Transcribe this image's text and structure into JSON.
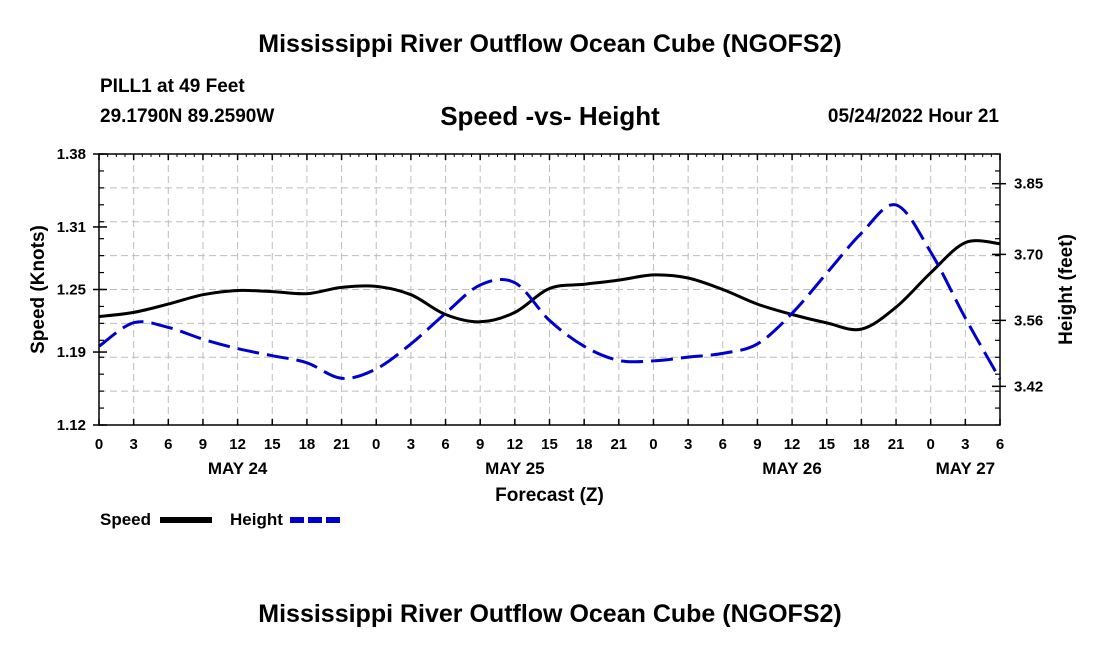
{
  "header": {
    "title": "Mississippi River Outflow Ocean Cube (NGOFS2)",
    "station": "PILL1 at 49 Feet",
    "coords": "29.1790N  89.2590W",
    "chart_title": "Speed -vs- Height",
    "timestamp": "05/24/2022 Hour 21"
  },
  "footer": {
    "title": "Mississippi River Outflow Ocean Cube (NGOFS2)"
  },
  "colors": {
    "speed": "#000000",
    "height": "#0000cc",
    "grid": "#bdbdbd"
  },
  "chart_data": {
    "type": "line",
    "title": "Speed -vs- Height",
    "xlabel": "Forecast (Z)",
    "ylabel": "Speed (Knots)",
    "y2label": "Height (feet)",
    "grid": true,
    "legend": "bottom-left",
    "xlim": [
      0,
      78
    ],
    "ylim": [
      1.12,
      1.38
    ],
    "y2lim": [
      3.338,
      3.913
    ],
    "x_ticks": [
      0,
      3,
      6,
      9,
      12,
      15,
      18,
      21,
      24,
      27,
      30,
      33,
      36,
      39,
      42,
      45,
      48,
      51,
      54,
      57,
      60,
      63,
      66,
      69,
      72,
      75,
      78
    ],
    "x_tick_labels": [
      "0",
      "3",
      "6",
      "9",
      "12",
      "15",
      "18",
      "21",
      "0",
      "3",
      "6",
      "9",
      "12",
      "15",
      "18",
      "21",
      "0",
      "3",
      "6",
      "9",
      "12",
      "15",
      "18",
      "21",
      "0",
      "3",
      "6"
    ],
    "day_labels": [
      {
        "x": 12,
        "label": "MAY 24"
      },
      {
        "x": 36,
        "label": "MAY 25"
      },
      {
        "x": 60,
        "label": "MAY 26"
      },
      {
        "x": 75,
        "label": "MAY 27"
      }
    ],
    "y_ticks": [
      1.12,
      1.19,
      1.25,
      1.31,
      1.38
    ],
    "y_tick_labels": [
      "1.12",
      "1.19",
      "1.25",
      "1.31",
      "1.38"
    ],
    "y2_ticks": [
      3.42,
      3.56,
      3.7,
      3.85
    ],
    "y2_tick_labels": [
      "3.42",
      "3.56",
      "3.70",
      "3.85"
    ],
    "series": [
      {
        "name": "Speed",
        "axis": "left",
        "style": "solid",
        "x": [
          0,
          3,
          6,
          9,
          12,
          15,
          18,
          21,
          24,
          27,
          30,
          33,
          36,
          39,
          42,
          45,
          48,
          51,
          54,
          57,
          60,
          63,
          66,
          69,
          72,
          75,
          78
        ],
        "values": [
          1.224,
          1.228,
          1.236,
          1.245,
          1.249,
          1.248,
          1.246,
          1.252,
          1.253,
          1.245,
          1.226,
          1.219,
          1.228,
          1.251,
          1.255,
          1.259,
          1.264,
          1.261,
          1.25,
          1.236,
          1.226,
          1.218,
          1.212,
          1.233,
          1.266,
          1.295,
          1.294
        ]
      },
      {
        "name": "Height",
        "axis": "right",
        "style": "dashed",
        "x": [
          0,
          3,
          6,
          9,
          12,
          15,
          18,
          21,
          24,
          27,
          30,
          33,
          36,
          39,
          42,
          45,
          48,
          51,
          54,
          57,
          60,
          63,
          66,
          69,
          72,
          75,
          78
        ],
        "values": [
          3.505,
          3.555,
          3.545,
          3.52,
          3.5,
          3.485,
          3.47,
          3.437,
          3.457,
          3.51,
          3.575,
          3.635,
          3.64,
          3.56,
          3.505,
          3.475,
          3.474,
          3.482,
          3.49,
          3.51,
          3.575,
          3.66,
          3.745,
          3.805,
          3.705,
          3.565,
          3.435
        ]
      }
    ]
  }
}
